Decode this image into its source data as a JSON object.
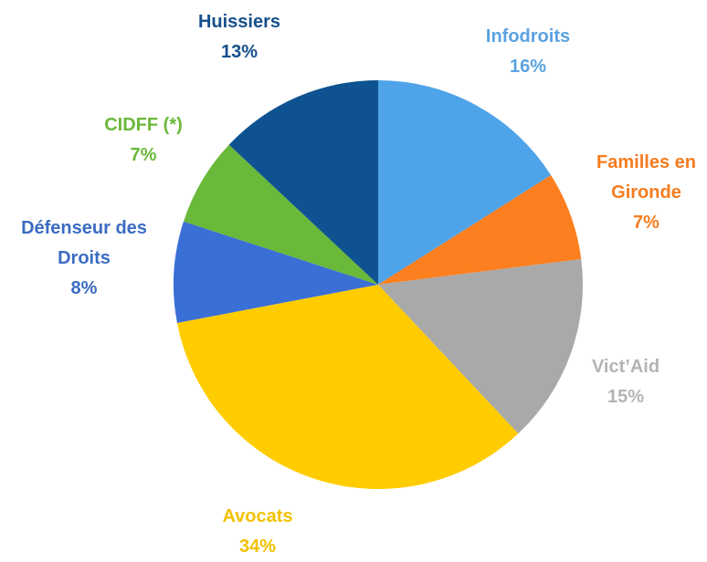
{
  "chart_data": {
    "type": "pie",
    "categories": [
      "Infodroits",
      "Familles en Gironde",
      "Vict’Aid",
      "Avocats",
      "Défenseur des Droits",
      "CIDFF (*)",
      "Huissiers"
    ],
    "values": [
      16,
      7,
      15,
      34,
      8,
      7,
      13
    ],
    "value_labels": [
      "16%",
      "7%",
      "15%",
      "34%",
      "8%",
      "7%",
      "13%"
    ],
    "colors": [
      "#4fa3e8",
      "#fd7f1f",
      "#a9a9a9",
      "#ffcc00",
      "#3a6fd6",
      "#6ab93a",
      "#0f5291"
    ],
    "label_colors": [
      "#5aa2e0",
      "#f57c1f",
      "#b4b4b4",
      "#f2c200",
      "#3b6cc3",
      "#6ab93a",
      "#164f8c"
    ]
  }
}
